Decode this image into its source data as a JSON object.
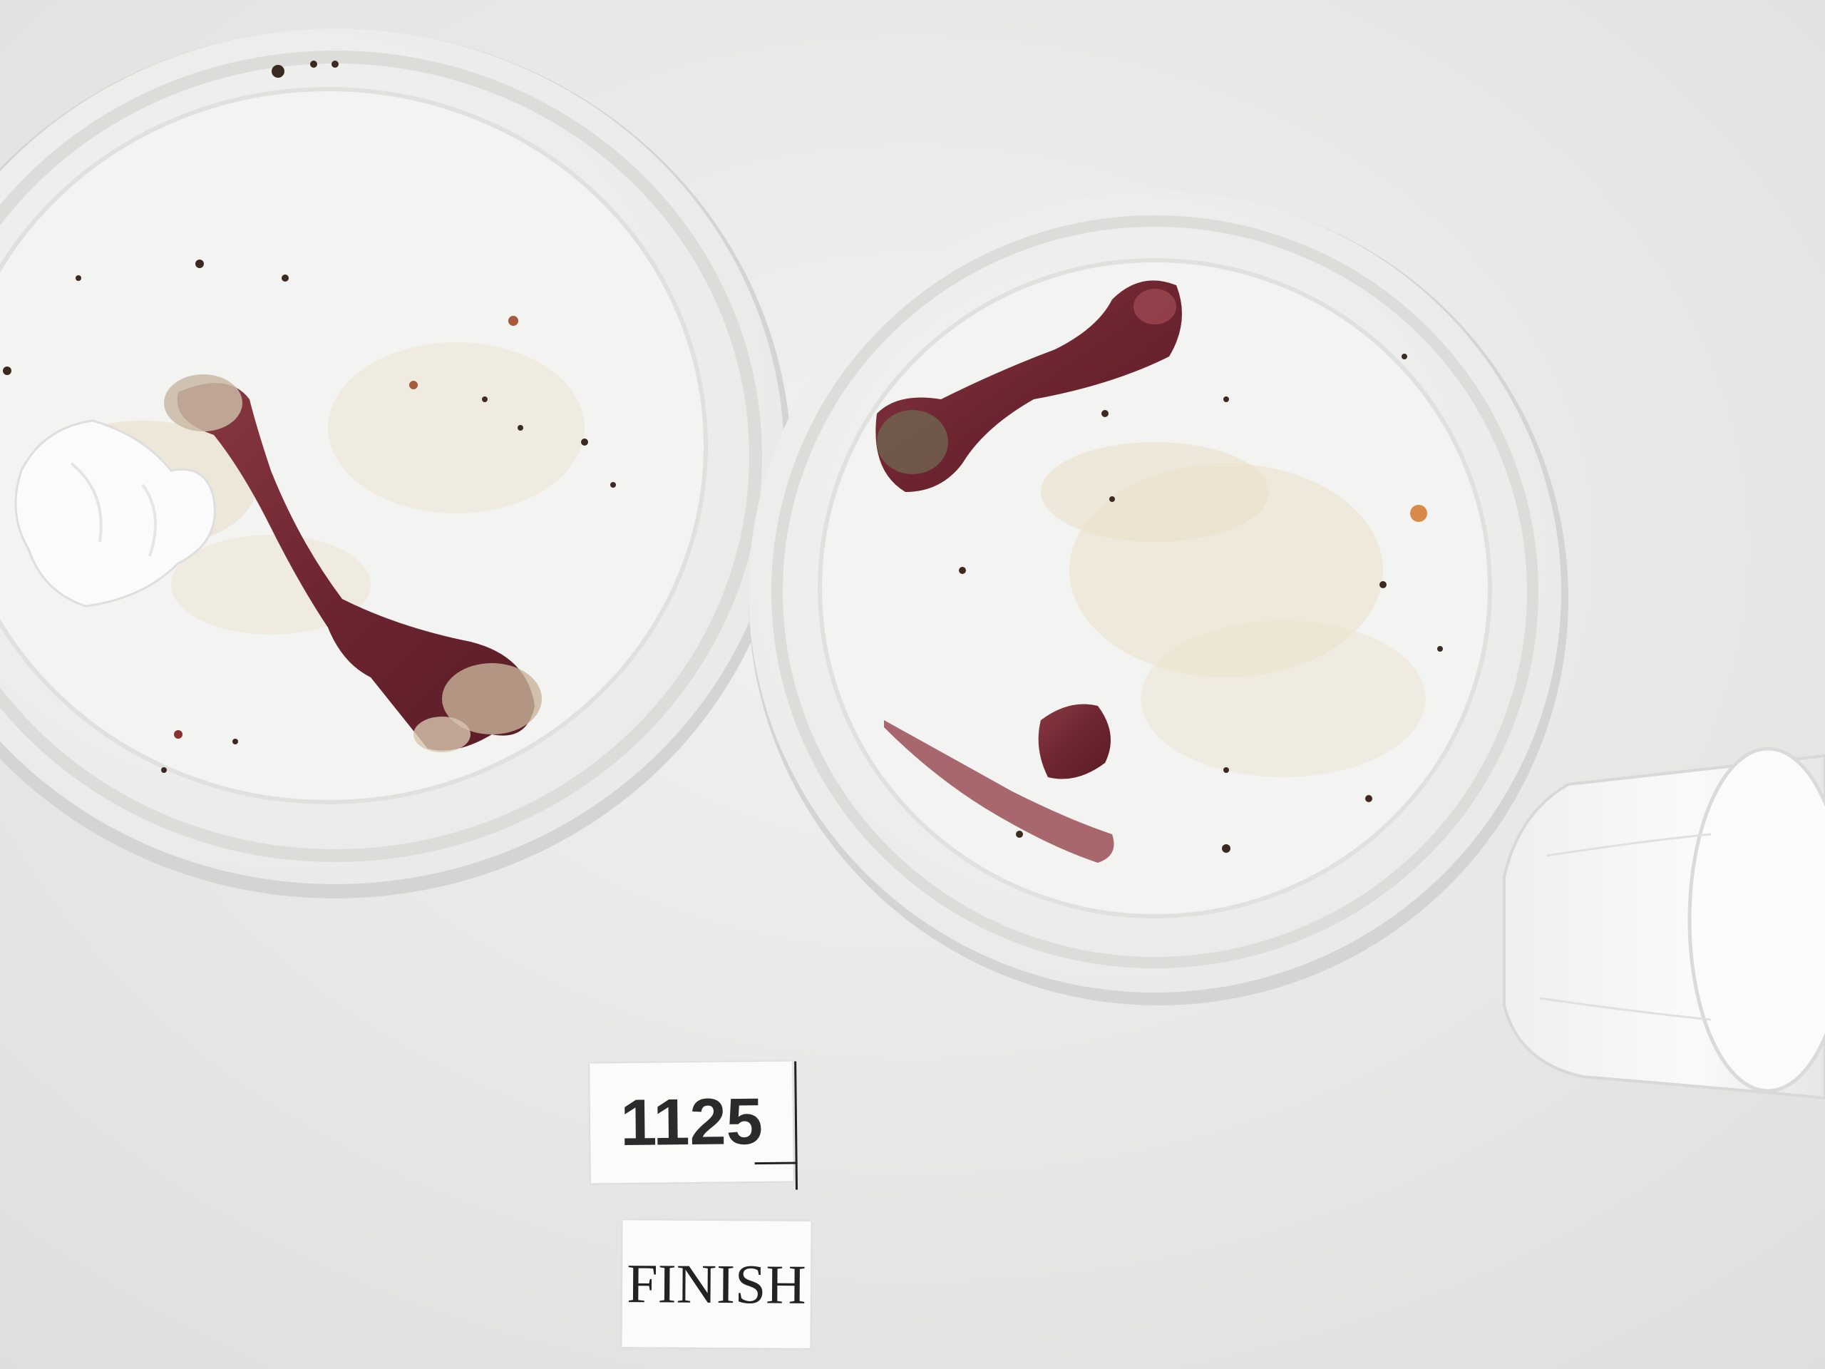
{
  "photo": {
    "labels": {
      "number_card": "1125",
      "finish_card": "FINISH"
    },
    "colors": {
      "table": "#ebebe9",
      "plate": "#f4f4f2",
      "bone": "#7a2f38",
      "cup": "#f6f6f6"
    }
  }
}
